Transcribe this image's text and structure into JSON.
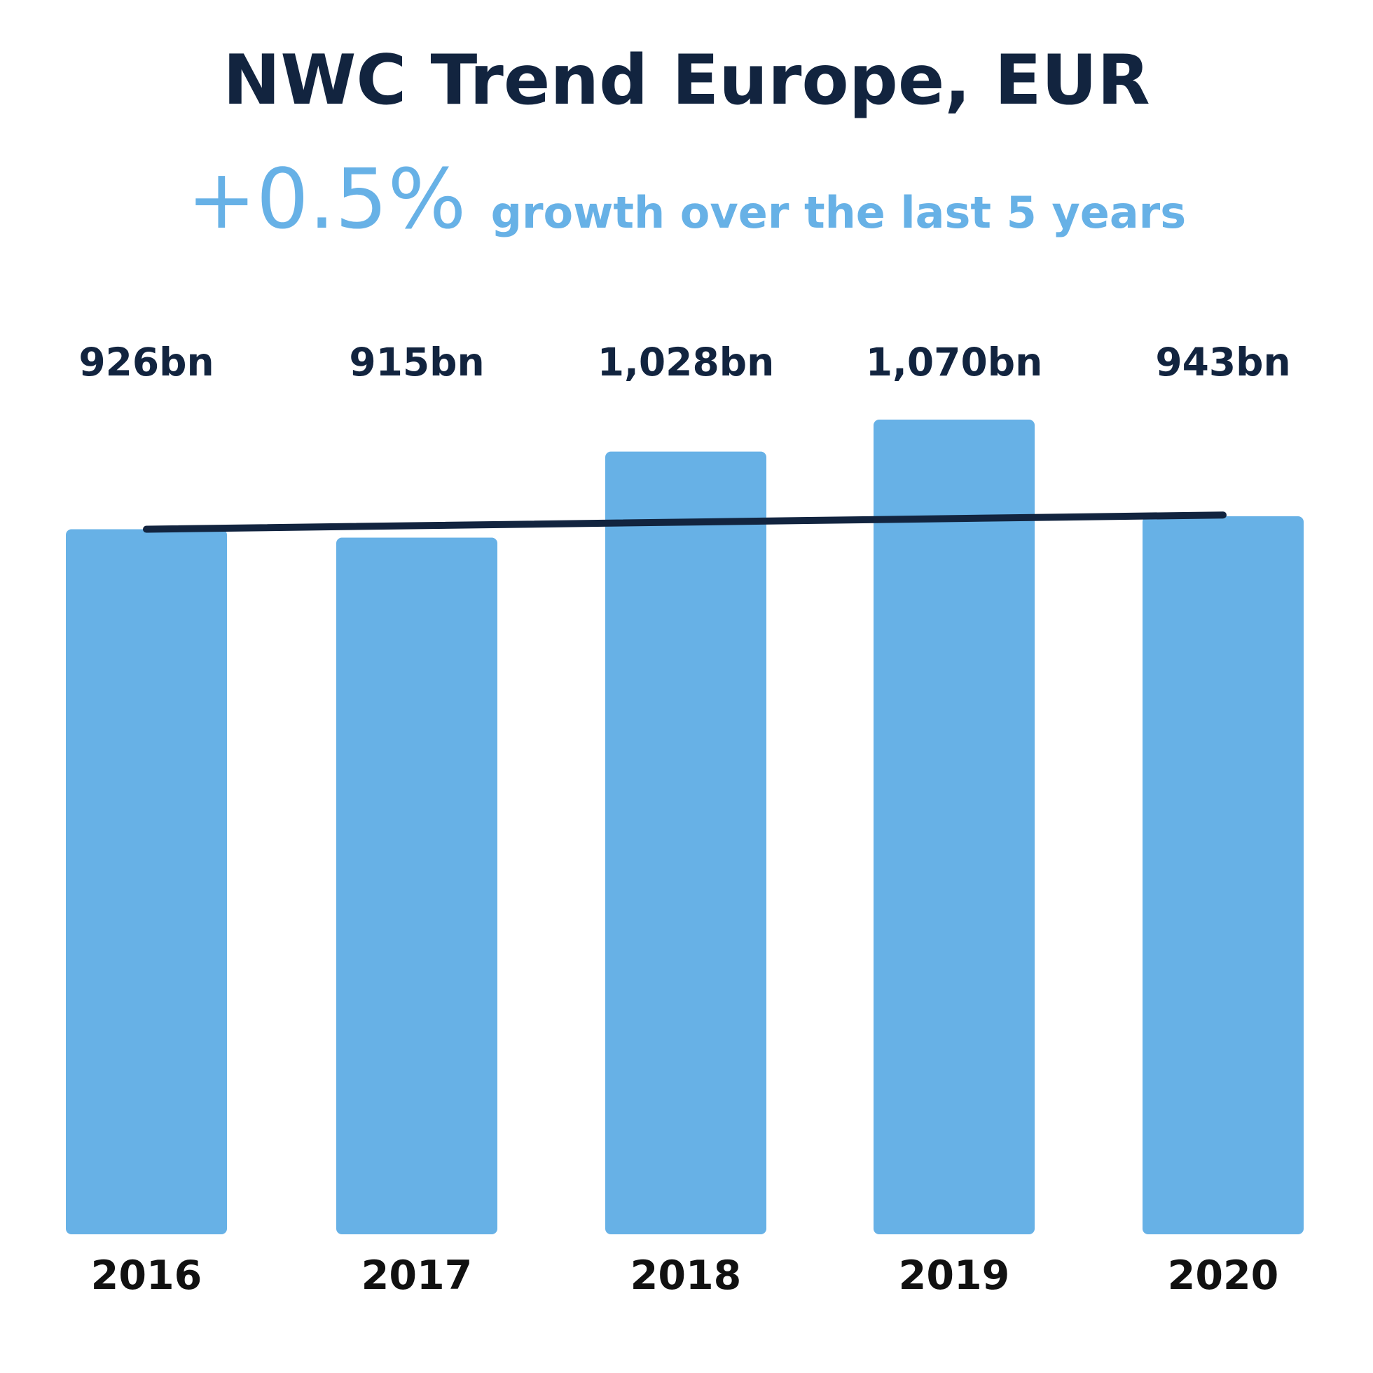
{
  "chart_data": {
    "type": "bar",
    "title": "NWC Trend Europe, EUR",
    "subtitle": {
      "value": "+0.5%",
      "text": "growth over the last 5 years"
    },
    "categories": [
      "2016",
      "2017",
      "2018",
      "2019",
      "2020"
    ],
    "values": [
      926,
      915,
      1028,
      1070,
      943
    ],
    "value_labels": [
      "926bn",
      "915bn",
      "1,028bn",
      "1,070bn",
      "943bn"
    ],
    "trendline": {
      "type": "line",
      "start": 926,
      "end": 944.7
    },
    "ylim": [
      0,
      1070
    ],
    "xlabel": "",
    "ylabel": "",
    "grid": false,
    "legend": "none",
    "colors": {
      "bar": "#67b1e6",
      "trendline": "#12243f",
      "title": "#12243f",
      "accent": "#67b1e6"
    }
  }
}
